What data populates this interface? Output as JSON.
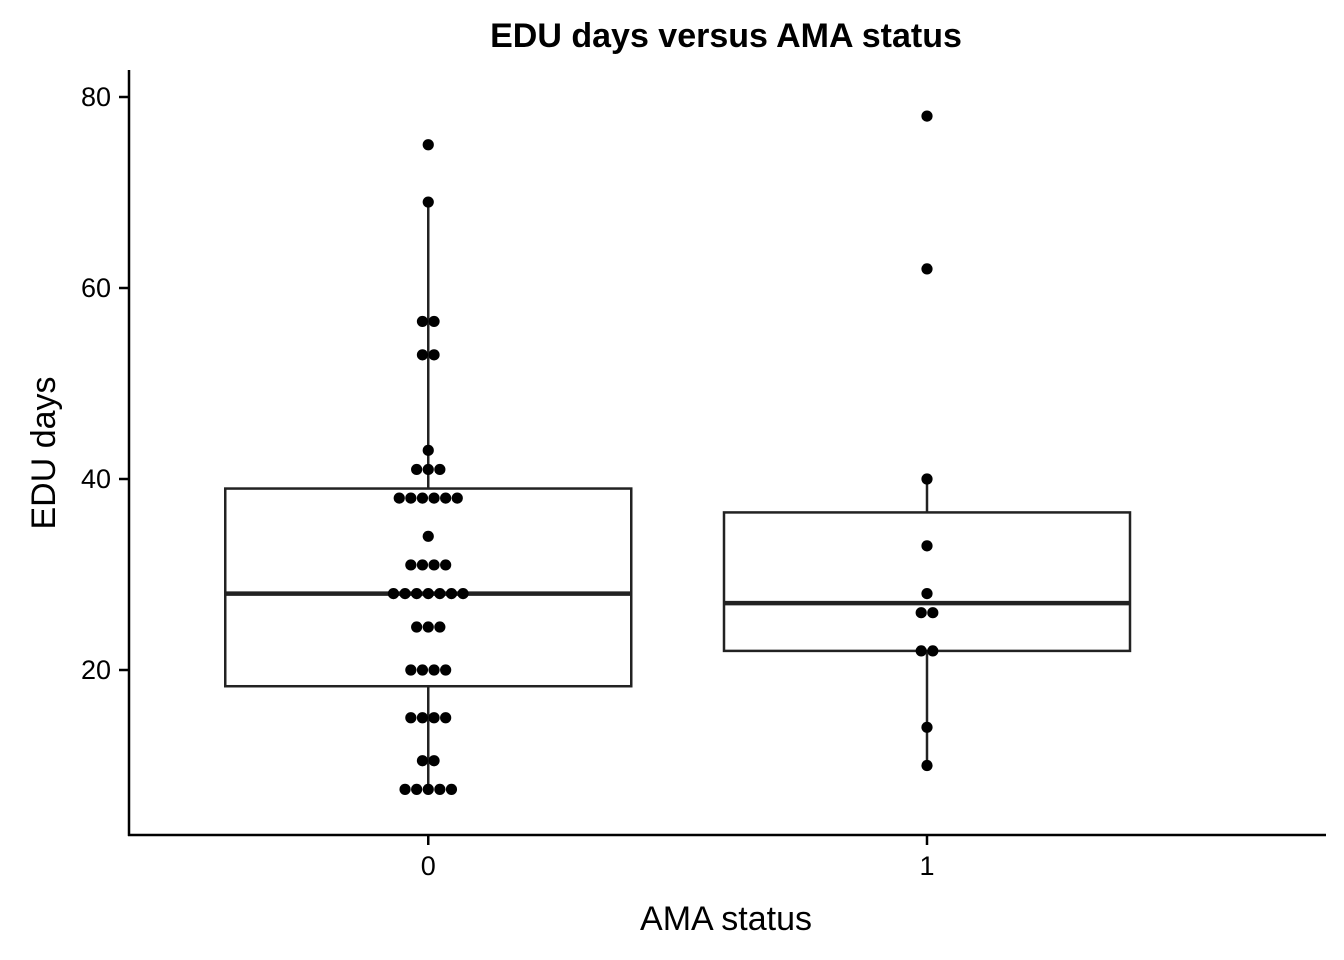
{
  "chart_data": {
    "type": "boxplot",
    "title": "EDU days versus AMA status",
    "xlabel": "AMA status",
    "ylabel": "EDU days",
    "categories": [
      "0",
      "1"
    ],
    "ylim": [
      3,
      83
    ],
    "yticks": [
      20,
      40,
      60,
      80
    ],
    "grid": false,
    "legend": "none",
    "boxes": [
      {
        "category": "0",
        "whisker_low": 7.5,
        "q1": 18.3,
        "median": 28,
        "q3": 39,
        "whisker_high": 69
      },
      {
        "category": "1",
        "whisker_low": 10,
        "q1": 22,
        "median": 27,
        "q3": 36.5,
        "whisker_high": 40
      }
    ],
    "points": [
      {
        "category": "0",
        "values": [
          75,
          69,
          56.5,
          56.5,
          53,
          53,
          43,
          41,
          41,
          41,
          38,
          38,
          38,
          38,
          38,
          38,
          34,
          31,
          31,
          31,
          31,
          28,
          28,
          28,
          28,
          28,
          28,
          28,
          24.5,
          24.5,
          24.5,
          20,
          20,
          20,
          20,
          15,
          15,
          15,
          15,
          10.5,
          10.5,
          7.5,
          7.5,
          7.5,
          7.5,
          7.5
        ]
      },
      {
        "category": "1",
        "values": [
          78,
          62,
          40,
          33,
          28,
          26,
          26,
          22,
          22,
          14,
          10
        ]
      }
    ]
  }
}
